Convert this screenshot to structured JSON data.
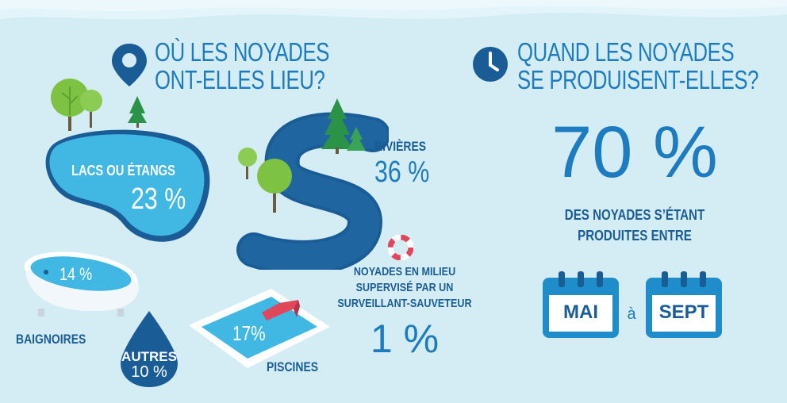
{
  "colors": {
    "background": "#d4edf5",
    "title_blue": "#1d7cc0",
    "dark_blue": "#1a5c96",
    "water": "#41b7e3",
    "river": "#1a5c96",
    "tree": "#7dc242",
    "pine": "#2b9348",
    "pool_edge": "#ffffff",
    "diving_board": "#e0475b",
    "calendar": "#1e8dc9"
  },
  "where": {
    "title_line1": "OÙ LES NOYADES",
    "title_line2": "ONT-ELLES LIEU?",
    "icon": "location-pin-icon"
  },
  "lakes": {
    "label": "LACS OU ÉTANGS",
    "value": "23 %"
  },
  "rivers": {
    "label": "RIVIÈRES",
    "value": "36 %"
  },
  "bathtubs": {
    "label": "BAIGNOIRES",
    "value": "14 %"
  },
  "others": {
    "label": "AUTRES",
    "value": "10 %"
  },
  "pools": {
    "label": "PISCINES",
    "value": "17%"
  },
  "supervised": {
    "line1": "NOYADES EN MILIEU",
    "line2": "SUPERVISÉ PAR UN",
    "line3": "SURVEILLANT-SAUVETEUR",
    "value": "1 %",
    "icon": "lifebuoy-icon"
  },
  "when": {
    "title_line1": "QUAND LES NOYADES",
    "title_line2": "SE PRODUISENT-ELLES?",
    "icon": "clock-icon",
    "percent": "70 %",
    "desc_line1": "DES NOYADES S’ÉTANT",
    "desc_line2": "PRODUITES ENTRE",
    "start_month": "MAI",
    "connector": "à",
    "end_month": "SEPT"
  }
}
